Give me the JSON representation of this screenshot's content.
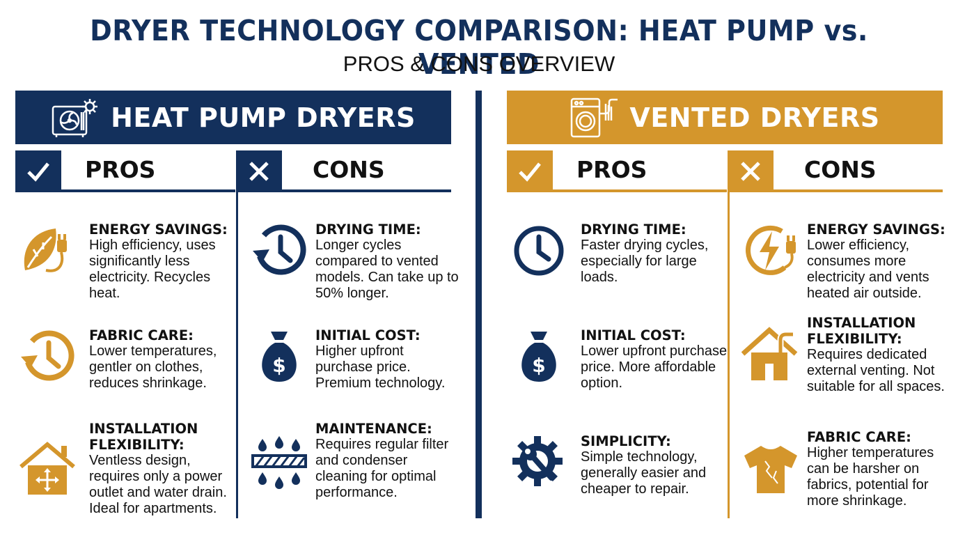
{
  "header": {
    "title": "DRYER TECHNOLOGY COMPARISON: HEAT PUMP vs. VENTED",
    "subtitle": "PROS & CONS OVERVIEW"
  },
  "colors": {
    "navy": "#13305c",
    "gold": "#d4962c"
  },
  "heat_pump": {
    "title": "HEAT PUMP DRYERS",
    "icon": "heat-pump-unit-icon",
    "pros_label": "PROS",
    "cons_label": "CONS",
    "pros": [
      {
        "icon": "eco-plug-icon",
        "heading": "ENERGY SAVINGS:",
        "text": "High efficiency, uses significantly less electricity. Recycles heat."
      },
      {
        "icon": "history-clock-icon",
        "heading": "FABRIC CARE:",
        "text": "Lower temperatures, gentler on clothes, reduces shrinkage."
      },
      {
        "icon": "house-arrows-icon",
        "heading": "INSTALLATION FLEXIBILITY:",
        "text": "Ventless design, requires only a power outlet and water drain. Ideal for apartments."
      }
    ],
    "cons": [
      {
        "icon": "history-clock-icon",
        "heading": "DRYING TIME:",
        "text": "Longer cycles compared to vented models. Can take up to 50% longer."
      },
      {
        "icon": "money-bag-icon",
        "heading": "INITIAL COST:",
        "text": "Higher upfront purchase price. Premium technology."
      },
      {
        "icon": "filter-drops-icon",
        "heading": "MAINTENANCE:",
        "text": "Requires regular filter and condenser cleaning for optimal performance."
      }
    ]
  },
  "vented": {
    "title": "VENTED DRYERS",
    "icon": "vented-dryer-icon",
    "pros_label": "PROS",
    "cons_label": "CONS",
    "pros": [
      {
        "icon": "clock-icon",
        "heading": "DRYING TIME:",
        "text": "Faster drying cycles, especially for large loads."
      },
      {
        "icon": "money-bag-icon",
        "heading": "INITIAL COST:",
        "text": "Lower upfront purchase price. More affordable option."
      },
      {
        "icon": "gear-wrench-icon",
        "heading": "SIMPLICITY:",
        "text": "Simple technology, generally easier and cheaper to repair."
      }
    ],
    "cons": [
      {
        "icon": "bolt-plug-icon",
        "heading": "ENERGY SAVINGS:",
        "text": "Lower efficiency, consumes more electricity and vents heated air outside."
      },
      {
        "icon": "house-vent-icon",
        "heading": "INSTALLATION FLEXIBILITY:",
        "text": "Requires dedicated external venting. Not suitable for all spaces."
      },
      {
        "icon": "damaged-shirt-icon",
        "heading": "FABRIC CARE:",
        "text": "Higher temperatures can be harsher on fabrics, potential for more shrinkage."
      }
    ]
  }
}
